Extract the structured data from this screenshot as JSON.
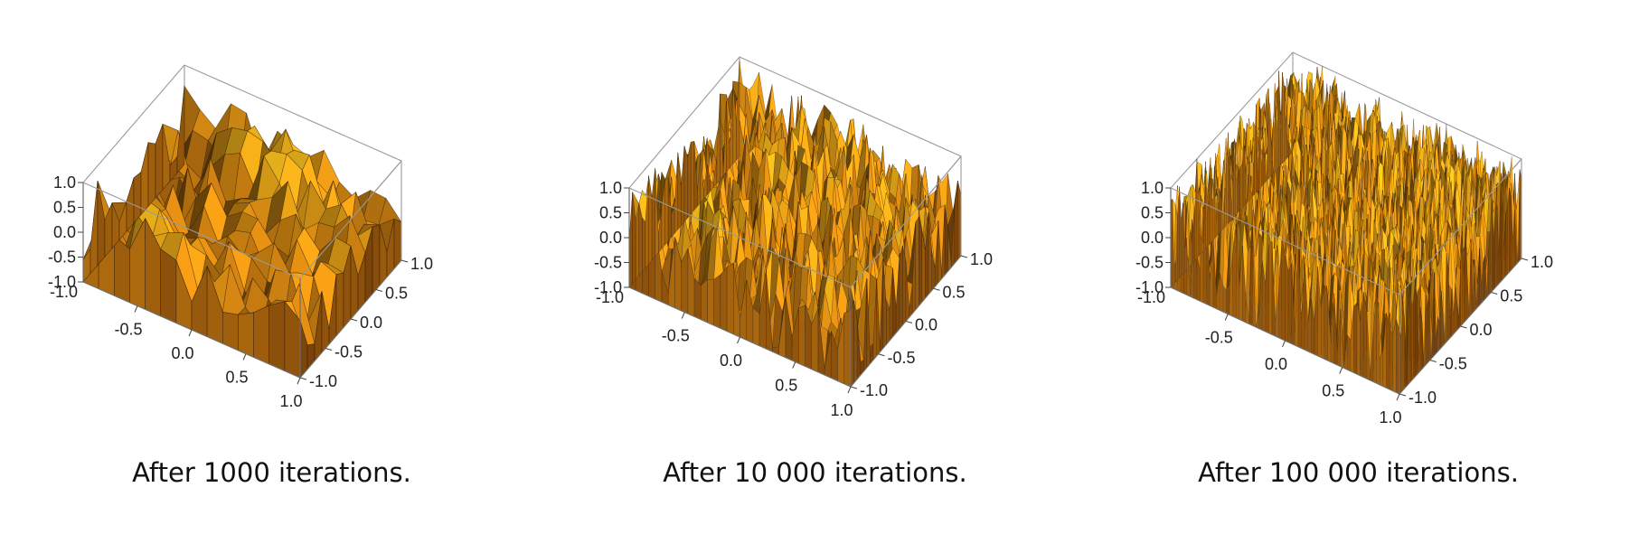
{
  "chart_data": [
    {
      "type": "surface3d",
      "caption": "After 1000 iterations.",
      "xlim": [
        -1.0,
        1.0
      ],
      "ylim": [
        -1.0,
        1.0
      ],
      "zlim": [
        -1.0,
        1.0
      ],
      "x_ticks": [
        "-0.5",
        "0.0",
        "0.5",
        "1.0"
      ],
      "y_ticks": [
        "-1.0",
        "-0.5",
        "0.0",
        "0.5",
        "1.0"
      ],
      "z_ticks": [
        "1.0",
        "0.5",
        "0.0",
        "-0.5",
        "-1.0"
      ],
      "corner_tick": "-1.0",
      "mesh_resolution": 14,
      "roughness": 0.55
    },
    {
      "type": "surface3d",
      "caption": "After 10 000 iterations.",
      "xlim": [
        -1.0,
        1.0
      ],
      "ylim": [
        -1.0,
        1.0
      ],
      "zlim": [
        -1.0,
        1.0
      ],
      "x_ticks": [
        "-0.5",
        "0.0",
        "0.5",
        "1.0"
      ],
      "y_ticks": [
        "-1.0",
        "-0.5",
        "0.0",
        "0.5",
        "1.0"
      ],
      "z_ticks": [
        "1.0",
        "0.5",
        "0.0",
        "-0.5",
        "-1.0"
      ],
      "corner_tick": "-1.0",
      "mesh_resolution": 34,
      "roughness": 0.8
    },
    {
      "type": "surface3d",
      "caption": "After 100 000 iterations.",
      "xlim": [
        -1.0,
        1.0
      ],
      "ylim": [
        -1.0,
        1.0
      ],
      "zlim": [
        -1.0,
        1.0
      ],
      "x_ticks": [
        "-0.5",
        "0.0",
        "0.5",
        "1.0"
      ],
      "y_ticks": [
        "-1.0",
        "-0.5",
        "0.0",
        "0.5",
        "1.0"
      ],
      "z_ticks": [
        "1.0",
        "0.5",
        "0.0",
        "-0.5",
        "-1.0"
      ],
      "corner_tick": "-1.0",
      "mesh_resolution": 70,
      "roughness": 0.95
    }
  ],
  "colors": {
    "surface_light": "#f2c81f",
    "surface_mid": "#d98a12",
    "surface_dark": "#5a2c08",
    "mesh_line": "#2a1a08",
    "box": "#9a9a9a"
  }
}
